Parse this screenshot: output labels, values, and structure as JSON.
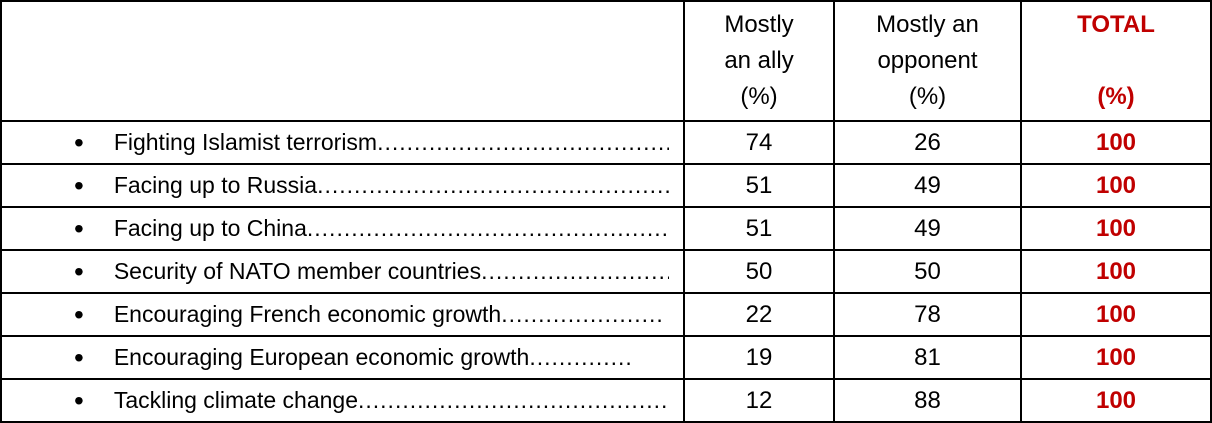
{
  "colors": {
    "total_accent": "#C00000",
    "border": "#000000",
    "text": "#000000",
    "background": "#FFFFFF"
  },
  "table": {
    "bullet": "•",
    "header": {
      "corner": "",
      "columns": [
        {
          "id": "mostly_ally",
          "label": "Mostly\nan ally\n(%)"
        },
        {
          "id": "mostly_opponent",
          "label": "Mostly an\nopponent\n(%)"
        },
        {
          "id": "total",
          "label": "TOTAL\n\n(%)"
        }
      ]
    },
    "rows": [
      {
        "label": "Fighting Islamist terrorism",
        "leader": "..........................................",
        "ally": "74",
        "opponent": "26",
        "total": "100"
      },
      {
        "label": "Facing up to Russia",
        "leader": "..................................................",
        "ally": "51",
        "opponent": "49",
        "total": "100"
      },
      {
        "label": "Facing up to China",
        "leader": "..................................................",
        "ally": "51",
        "opponent": "49",
        "total": "100"
      },
      {
        "label": "Security of NATO member countries",
        "leader": "..........................",
        "ally": "50",
        "opponent": "50",
        "total": "100"
      },
      {
        "label": "Encouraging French economic growth",
        "leader": "......................",
        "ally": "22",
        "opponent": "78",
        "total": "100"
      },
      {
        "label": "Encouraging European economic growth",
        "leader": "..............",
        "ally": "19",
        "opponent": "81",
        "total": "100"
      },
      {
        "label": "Tackling climate change",
        "leader": "..............................................",
        "ally": "12",
        "opponent": "88",
        "total": "100"
      }
    ]
  }
}
